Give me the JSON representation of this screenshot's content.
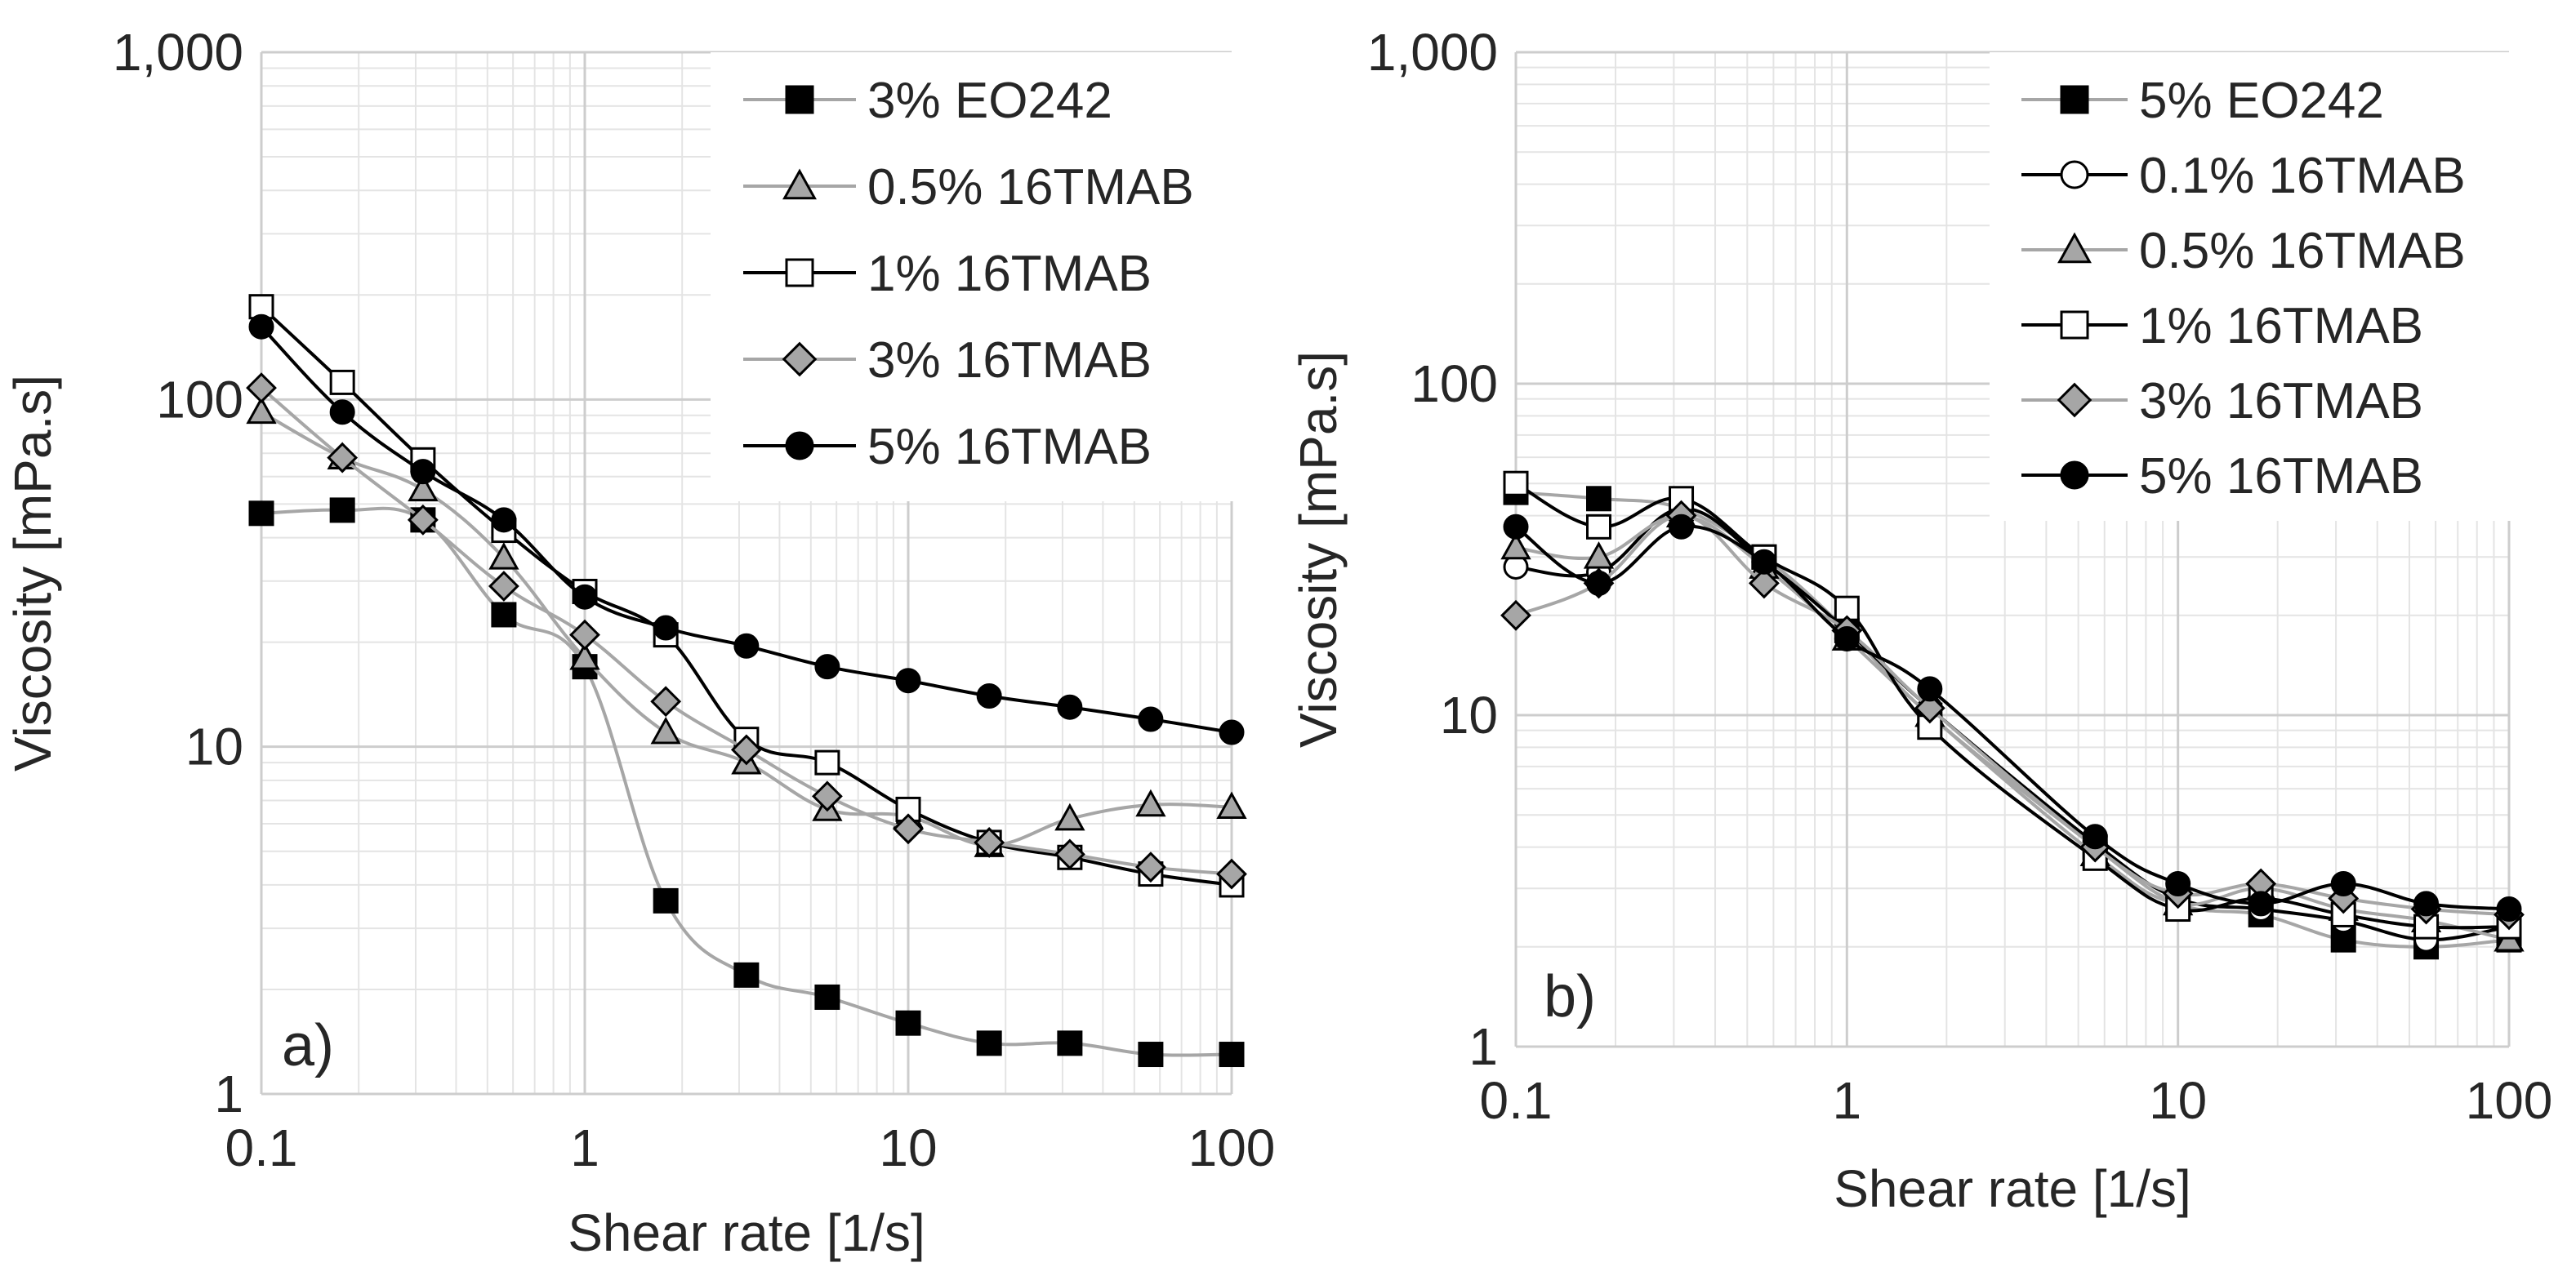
{
  "chart_data": [
    {
      "panel": "a)",
      "type": "line",
      "scale": "log-log",
      "xlabel": "Shear rate [1/s]",
      "ylabel": "Viscosity [mPa.s]",
      "xlim": [
        0.1,
        100
      ],
      "ylim": [
        1,
        1000
      ],
      "xticks": [
        "0.1",
        "1",
        "10",
        "100"
      ],
      "yticks": [
        "1",
        "10",
        "100",
        "1,000"
      ],
      "grid": true,
      "legend_position": "top-right",
      "x": [
        0.1,
        0.178,
        0.316,
        0.562,
        1,
        1.78,
        3.16,
        5.62,
        10,
        17.8,
        31.6,
        56.2,
        100
      ],
      "series": [
        {
          "name": "3% EO242",
          "marker": "square",
          "fill": "#000000",
          "line": "#a6a6a6",
          "values": [
            47,
            48,
            45,
            24,
            17,
            3.6,
            2.2,
            1.9,
            1.6,
            1.4,
            1.4,
            1.3,
            1.3
          ]
        },
        {
          "name": "0.5% 16TMAB",
          "marker": "triangle",
          "fill": "#a6a6a6",
          "line": "#a6a6a6",
          "values": [
            92,
            68,
            55,
            35,
            18,
            11,
            9,
            6.6,
            6.3,
            5.2,
            6.2,
            6.8,
            6.7
          ]
        },
        {
          "name": "1% 16TMAB",
          "marker": "square",
          "fill": "#ffffff",
          "line": "#000000",
          "values": [
            185,
            112,
            67,
            42,
            28,
            21,
            10.5,
            9,
            6.6,
            5.3,
            4.8,
            4.3,
            4
          ]
        },
        {
          "name": "3% 16TMAB",
          "marker": "diamond",
          "fill": "#a6a6a6",
          "line": "#a6a6a6",
          "values": [
            108,
            68,
            45,
            29,
            21,
            13.5,
            9.8,
            7.2,
            5.8,
            5.3,
            4.9,
            4.5,
            4.3
          ]
        },
        {
          "name": "5% 16TMAB",
          "marker": "circle",
          "fill": "#000000",
          "line": "#000000",
          "values": [
            162,
            92,
            62,
            45,
            27,
            22,
            19.5,
            17,
            15.5,
            14,
            13,
            12,
            11
          ]
        }
      ]
    },
    {
      "panel": "b)",
      "type": "line",
      "scale": "log-log",
      "xlabel": "Shear rate [1/s]",
      "ylabel": "Viscosity [mPa.s]",
      "xlim": [
        0.1,
        100
      ],
      "ylim": [
        1,
        1000
      ],
      "xticks": [
        "0.1",
        "1",
        "10",
        "100"
      ],
      "yticks": [
        "1",
        "10",
        "100",
        "1,000"
      ],
      "grid": true,
      "legend_position": "top-right",
      "x": [
        0.1,
        0.178,
        0.316,
        0.562,
        1,
        1.78,
        5.62,
        10,
        17.8,
        31.6,
        56.2,
        100
      ],
      "series": [
        {
          "name": "5% EO242",
          "marker": "square",
          "fill": "#000000",
          "line": "#a6a6a6",
          "values": [
            47,
            45,
            42,
            30,
            18,
            10,
            4,
            2.7,
            2.5,
            2.1,
            2,
            2.1
          ]
        },
        {
          "name": "0.1% 16TMAB",
          "marker": "circle",
          "fill": "#ffffff",
          "line": "#000000",
          "values": [
            28,
            27,
            42,
            29,
            18,
            10.5,
            4.1,
            2.8,
            2.6,
            2.4,
            2.1,
            2.3
          ]
        },
        {
          "name": "0.5% 16TMAB",
          "marker": "triangle",
          "fill": "#a6a6a6",
          "line": "#a6a6a6",
          "values": [
            32,
            30,
            40,
            28,
            17,
            10,
            3.8,
            2.7,
            3,
            2.6,
            2.4,
            2.1
          ]
        },
        {
          "name": "1% 16TMAB",
          "marker": "square",
          "fill": "#ffffff",
          "line": "#000000",
          "values": [
            50,
            37,
            45,
            30,
            21,
            9.2,
            3.7,
            2.6,
            2.8,
            2.5,
            2.3,
            2.3
          ]
        },
        {
          "name": "3% 16TMAB",
          "marker": "diamond",
          "fill": "#a6a6a6",
          "line": "#a6a6a6",
          "values": [
            20,
            25,
            40,
            25,
            18,
            10.5,
            4,
            2.9,
            3.1,
            2.8,
            2.6,
            2.5
          ]
        },
        {
          "name": "5% 16TMAB",
          "marker": "circle",
          "fill": "#000000",
          "line": "#000000",
          "values": [
            37,
            25,
            37,
            29,
            17,
            12,
            4.3,
            3.1,
            2.7,
            3.1,
            2.7,
            2.6
          ]
        }
      ]
    }
  ]
}
